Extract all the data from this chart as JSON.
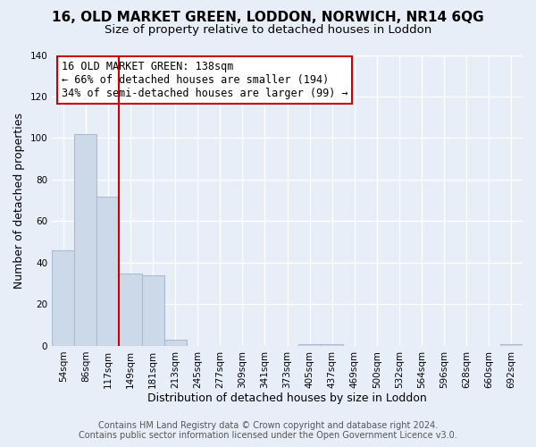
{
  "title": "16, OLD MARKET GREEN, LODDON, NORWICH, NR14 6QG",
  "subtitle": "Size of property relative to detached houses in Loddon",
  "xlabel": "Distribution of detached houses by size in Loddon",
  "ylabel": "Number of detached properties",
  "footer_line1": "Contains HM Land Registry data © Crown copyright and database right 2024.",
  "footer_line2": "Contains public sector information licensed under the Open Government Licence v3.0.",
  "bar_labels": [
    "54sqm",
    "86sqm",
    "117sqm",
    "149sqm",
    "181sqm",
    "213sqm",
    "245sqm",
    "277sqm",
    "309sqm",
    "341sqm",
    "373sqm",
    "405sqm",
    "437sqm",
    "469sqm",
    "500sqm",
    "532sqm",
    "564sqm",
    "596sqm",
    "628sqm",
    "660sqm",
    "692sqm"
  ],
  "bar_values": [
    46,
    102,
    72,
    35,
    34,
    3,
    0,
    0,
    0,
    0,
    0,
    1,
    1,
    0,
    0,
    0,
    0,
    0,
    0,
    0,
    1
  ],
  "bar_color": "#ccd9e8",
  "bar_edge_color": "#aabbd0",
  "property_line_x": 2.5,
  "property_line_color": "#cc0000",
  "annotation_text": "16 OLD MARKET GREEN: 138sqm\n← 66% of detached houses are smaller (194)\n34% of semi-detached houses are larger (99) →",
  "annotation_box_color": "#ffffff",
  "annotation_box_edge_color": "#cc0000",
  "ylim": [
    0,
    140
  ],
  "yticks": [
    0,
    20,
    40,
    60,
    80,
    100,
    120,
    140
  ],
  "bg_color": "#e8eef8",
  "grid_color": "#ffffff",
  "title_fontsize": 11,
  "subtitle_fontsize": 9.5,
  "axis_label_fontsize": 9,
  "tick_fontsize": 7.5,
  "annotation_fontsize": 8.5,
  "footer_fontsize": 7
}
